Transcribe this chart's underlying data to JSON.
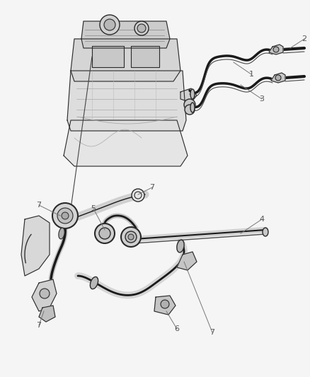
{
  "background_color": "#f5f5f5",
  "line_color": "#2a2a2a",
  "label_color": "#555555",
  "fig_width": 4.38,
  "fig_height": 5.33,
  "dpi": 100
}
